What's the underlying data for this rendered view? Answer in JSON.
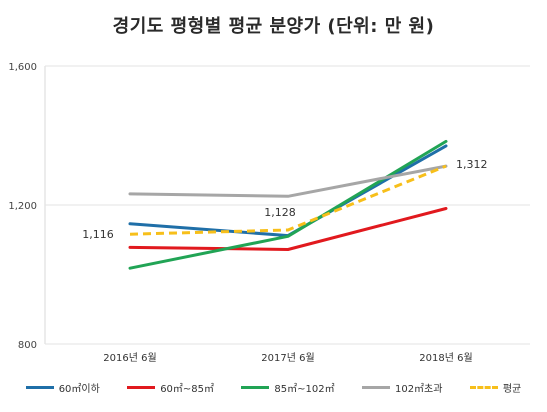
{
  "chart_data": {
    "type": "line",
    "title": "경기도 평형별 평균 분양가 (단위: 만 원)",
    "categories": [
      "2016년 6월",
      "2017년 6월",
      "2018년 6월"
    ],
    "ylim": [
      800,
      1600
    ],
    "yticks": [
      800,
      1200,
      1600
    ],
    "ytick_labels": [
      "800",
      "1,200",
      "1,600"
    ],
    "grid": "horizontal",
    "legend_position": "bottom",
    "series": [
      {
        "name": "60㎡이하",
        "values": [
          1146,
          1112,
          1370
        ],
        "color": "#1f6fa8",
        "dashed": false
      },
      {
        "name": "60㎡~85㎡",
        "values": [
          1078,
          1072,
          1190
        ],
        "color": "#e1191e",
        "dashed": false
      },
      {
        "name": "85㎡~102㎡",
        "values": [
          1018,
          1110,
          1383
        ],
        "color": "#21a455",
        "dashed": false
      },
      {
        "name": "102㎡초과",
        "values": [
          1232,
          1225,
          1312
        ],
        "color": "#a6a6a6",
        "dashed": false
      },
      {
        "name": "평균",
        "values": [
          1116,
          1128,
          1312
        ],
        "color": "#f7bf1a",
        "dashed": true
      }
    ],
    "data_labels": [
      {
        "text": "1,116",
        "series": 4,
        "index": 0
      },
      {
        "text": "1,128",
        "series": 4,
        "index": 1
      },
      {
        "text": "1,312",
        "series": 4,
        "index": 2
      }
    ]
  }
}
